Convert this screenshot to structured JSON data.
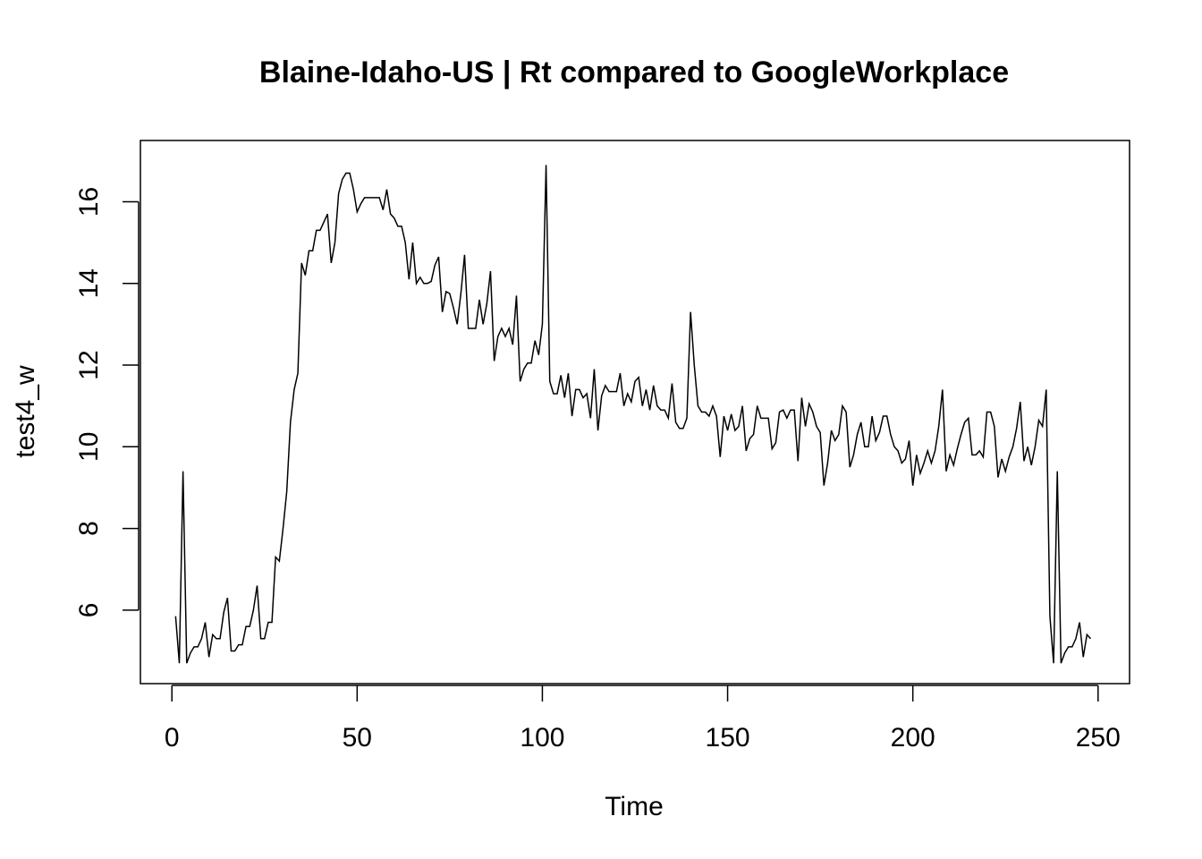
{
  "chart_data": {
    "type": "line",
    "title": "Blaine-Idaho-US | Rt compared to GoogleWorkplace",
    "xlabel": "Time",
    "ylabel": "test4_w",
    "xlim": [
      -8.5,
      258.5
    ],
    "ylim": [
      4.2,
      17.5
    ],
    "xticks": [
      0,
      50,
      100,
      150,
      200,
      250
    ],
    "yticks": [
      6,
      8,
      10,
      12,
      14,
      16
    ],
    "grid": false,
    "series": [
      {
        "color": "#000000",
        "x": [
          1,
          2,
          3,
          4,
          5,
          6,
          7,
          8,
          9,
          10,
          11,
          12,
          13,
          14,
          15,
          16,
          17,
          18,
          19,
          20,
          21,
          22,
          23,
          24,
          25,
          26,
          27,
          28,
          29,
          30,
          31,
          32,
          33,
          34,
          35,
          36,
          37,
          38,
          39,
          40,
          41,
          42,
          43,
          44,
          45,
          46,
          47,
          48,
          49,
          50,
          51,
          52,
          53,
          54,
          55,
          56,
          57,
          58,
          59,
          60,
          61,
          62,
          63,
          64,
          65,
          66,
          67,
          68,
          69,
          70,
          71,
          72,
          73,
          74,
          75,
          76,
          77,
          78,
          79,
          80,
          81,
          82,
          83,
          84,
          85,
          86,
          87,
          88,
          89,
          90,
          91,
          92,
          93,
          94,
          95,
          96,
          97,
          98,
          99,
          100,
          101,
          102,
          103,
          104,
          105,
          106,
          107,
          108,
          109,
          110,
          111,
          112,
          113,
          114,
          115,
          116,
          117,
          118,
          119,
          120,
          121,
          122,
          123,
          124,
          125,
          126,
          127,
          128,
          129,
          130,
          131,
          132,
          133,
          134,
          135,
          136,
          137,
          138,
          139,
          140,
          141,
          142,
          143,
          144,
          145,
          146,
          147,
          148,
          149,
          150,
          151,
          152,
          153,
          154,
          155,
          156,
          157,
          158,
          159,
          160,
          161,
          162,
          163,
          164,
          165,
          166,
          167,
          168,
          169,
          170,
          171,
          172,
          173,
          174,
          175,
          176,
          177,
          178,
          179,
          180,
          181,
          182,
          183,
          184,
          185,
          186,
          187,
          188,
          189,
          190,
          191,
          192,
          193,
          194,
          195,
          196,
          197,
          198,
          199,
          200,
          201,
          202,
          203,
          204,
          205,
          206,
          207,
          208,
          209,
          210,
          211,
          212,
          213,
          214,
          215,
          216,
          217,
          218,
          219,
          220,
          221,
          222,
          223,
          224,
          225,
          226,
          227,
          228,
          229,
          230,
          231,
          232,
          233,
          234,
          235,
          236,
          237,
          238,
          239,
          240,
          241,
          242,
          243,
          244,
          245,
          246,
          247,
          248
        ],
        "y": [
          5.85,
          4.7,
          9.4,
          4.7,
          4.95,
          5.1,
          5.1,
          5.3,
          5.7,
          4.85,
          5.4,
          5.3,
          5.3,
          5.95,
          6.3,
          5.0,
          5.0,
          5.15,
          5.15,
          5.6,
          5.6,
          6.0,
          6.6,
          5.3,
          5.3,
          5.7,
          5.7,
          7.3,
          7.2,
          8.0,
          8.9,
          10.6,
          11.4,
          11.8,
          14.5,
          14.2,
          14.8,
          14.8,
          15.3,
          15.3,
          15.5,
          15.7,
          14.5,
          15.0,
          16.2,
          16.55,
          16.7,
          16.7,
          16.3,
          15.75,
          15.95,
          16.1,
          16.1,
          16.1,
          16.1,
          16.1,
          15.8,
          16.3,
          15.7,
          15.6,
          15.4,
          15.4,
          15.0,
          14.1,
          15.0,
          14.0,
          14.15,
          14.0,
          14.0,
          14.05,
          14.45,
          14.65,
          13.3,
          13.8,
          13.75,
          13.4,
          13.0,
          13.75,
          14.7,
          12.9,
          12.9,
          12.9,
          13.6,
          13.0,
          13.5,
          14.3,
          12.1,
          12.7,
          12.9,
          12.7,
          12.9,
          12.5,
          13.7,
          11.6,
          11.9,
          12.05,
          12.05,
          12.6,
          12.25,
          13.0,
          16.9,
          11.6,
          11.3,
          11.3,
          11.75,
          11.2,
          11.8,
          10.75,
          11.4,
          11.4,
          11.2,
          11.3,
          10.7,
          11.9,
          10.4,
          11.25,
          11.5,
          11.35,
          11.35,
          11.35,
          11.8,
          11.0,
          11.3,
          11.1,
          11.6,
          11.7,
          11.0,
          11.4,
          10.9,
          11.5,
          11.0,
          10.9,
          10.9,
          10.7,
          11.55,
          10.6,
          10.45,
          10.45,
          10.7,
          13.3,
          12.0,
          11.0,
          10.85,
          10.85,
          10.75,
          11.0,
          10.75,
          9.75,
          10.75,
          10.4,
          10.8,
          10.4,
          10.5,
          11.0,
          9.9,
          10.2,
          10.3,
          11.0,
          10.7,
          10.7,
          10.7,
          9.95,
          10.1,
          10.85,
          10.9,
          10.7,
          10.9,
          10.9,
          9.65,
          11.2,
          10.5,
          11.05,
          10.85,
          10.5,
          10.35,
          9.05,
          9.6,
          10.4,
          10.15,
          10.3,
          11.0,
          10.85,
          9.5,
          9.8,
          10.3,
          10.6,
          10.0,
          10.0,
          10.75,
          10.15,
          10.35,
          10.75,
          10.75,
          10.3,
          10.0,
          9.9,
          9.6,
          9.7,
          10.15,
          9.05,
          9.8,
          9.35,
          9.6,
          9.9,
          9.6,
          9.9,
          10.5,
          11.4,
          9.4,
          9.8,
          9.55,
          9.95,
          10.3,
          10.6,
          10.7,
          9.8,
          9.8,
          9.9,
          9.75,
          10.85,
          10.85,
          10.5,
          9.25,
          9.7,
          9.4,
          9.75,
          10.0,
          10.45,
          11.1,
          9.65,
          10.0,
          9.55,
          10.0,
          10.65,
          10.5,
          11.4,
          5.85,
          4.7,
          9.4,
          4.7,
          4.95,
          5.1,
          5.1,
          5.3,
          5.7,
          4.85,
          5.4,
          5.3
        ]
      }
    ]
  }
}
